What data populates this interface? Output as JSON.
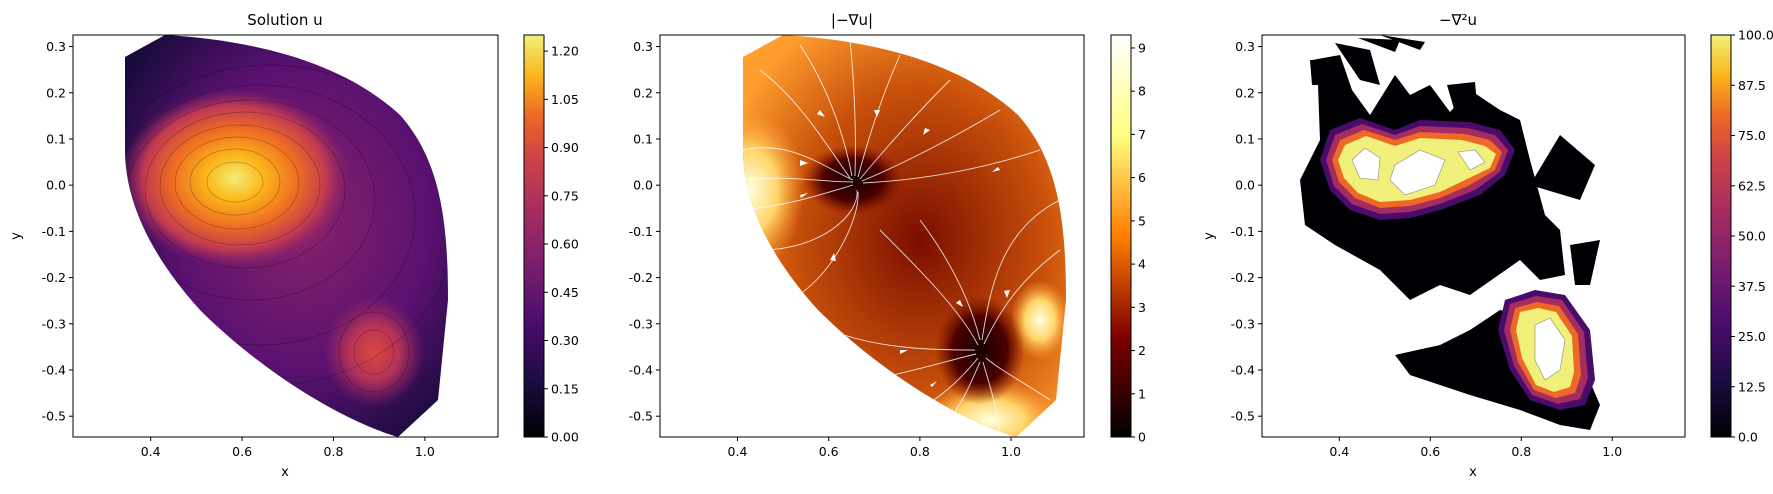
{
  "chart_data": [
    {
      "type": "contour",
      "title": "Solution u",
      "xlabel": "x",
      "ylabel": "y",
      "xlim": [
        0.23,
        1.16
      ],
      "ylim": [
        -0.545,
        0.325
      ],
      "xticks": [
        "0.4",
        "0.6",
        "0.8",
        "1.0"
      ],
      "yticks": [
        "0.3",
        "0.2",
        "0.1",
        "0.0",
        "-0.1",
        "-0.2",
        "-0.3",
        "-0.4",
        "-0.5"
      ],
      "colormap": "inferno",
      "colorbar": {
        "min": 0.0,
        "max": 1.25,
        "ticks": [
          "0.00",
          "0.15",
          "0.30",
          "0.45",
          "0.60",
          "0.75",
          "0.90",
          "1.05",
          "1.20"
        ]
      },
      "features": [
        {
          "kind": "maximum",
          "x": 0.62,
          "y": 0.0,
          "value": 1.25
        },
        {
          "kind": "local-maximum",
          "x": 0.87,
          "y": -0.37,
          "value": 0.72
        }
      ]
    },
    {
      "type": "contour+streamlines",
      "title": "|−∇u|",
      "xlim": [
        0.23,
        1.16
      ],
      "ylim": [
        -0.545,
        0.325
      ],
      "xticks": [
        "0.4",
        "0.6",
        "0.8",
        "1.0"
      ],
      "yticks": [
        "0.3",
        "0.2",
        "0.1",
        "0.0",
        "-0.1",
        "-0.2",
        "-0.3",
        "-0.4",
        "-0.5"
      ],
      "colormap": "afmhot",
      "colorbar": {
        "min": 0,
        "max": 9.3,
        "ticks": [
          "0",
          "1",
          "2",
          "3",
          "4",
          "5",
          "6",
          "7",
          "8",
          "9"
        ]
      },
      "streamline_color": "#ffffff"
    },
    {
      "type": "contour",
      "title": "−∇²u",
      "xlabel": "x",
      "ylabel": "y",
      "xlim": [
        0.23,
        1.16
      ],
      "ylim": [
        -0.545,
        0.325
      ],
      "xticks": [
        "0.4",
        "0.6",
        "0.8",
        "1.0"
      ],
      "yticks": [
        "0.3",
        "0.2",
        "0.1",
        "0.0",
        "-0.1",
        "-0.2",
        "-0.3",
        "-0.4",
        "-0.5"
      ],
      "colormap": "inferno",
      "colorbar": {
        "min": 0.0,
        "max": 100.0,
        "ticks": [
          "0.0",
          "12.5",
          "25.0",
          "37.5",
          "50.0",
          "62.5",
          "75.0",
          "87.5",
          "100.0"
        ]
      },
      "features": [
        {
          "kind": "high-region",
          "x": 0.6,
          "y": 0.0,
          "value": 100
        },
        {
          "kind": "high-region",
          "x": 0.9,
          "y": -0.42,
          "value": 100
        }
      ]
    }
  ]
}
